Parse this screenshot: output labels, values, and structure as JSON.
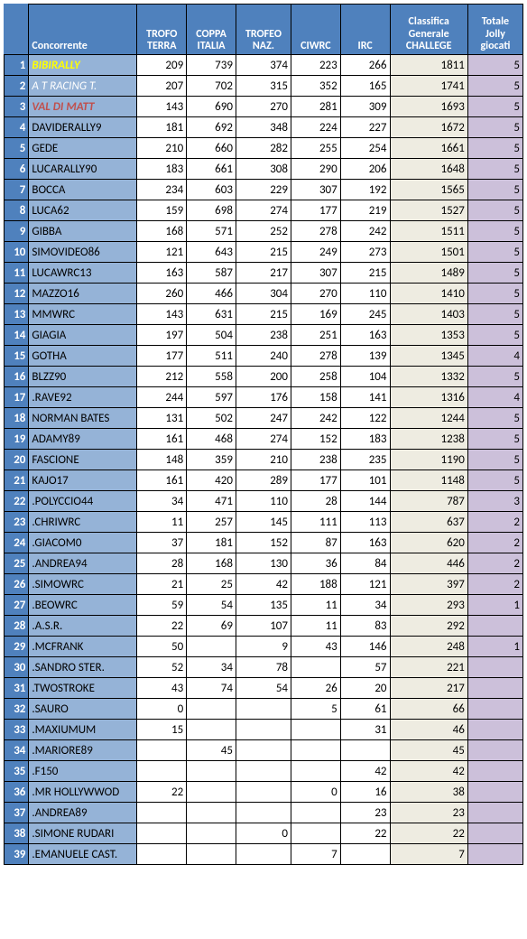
{
  "headers": {
    "rank": "",
    "name": "Concorrente",
    "terra": "TROFO TERRA",
    "coppa": "COPPA ITALIA",
    "naz": "TROFEO NAZ.",
    "ciwrc": "CIWRC",
    "irc": "IRC",
    "gen": "Classifica Generale CHALLEGE",
    "jolly": "Totale Jolly giocati"
  },
  "colors": {
    "header_bg": "#4f81bd",
    "header_fg": "#ffffff",
    "rank_bg": "#4f81bd",
    "rank_fg": "#ffffff",
    "name_bg": "#95b3d7",
    "num_bg": "#ffffff",
    "gen_bg": "#eeece1",
    "jolly_bg": "#ccc0da",
    "border": "#000000",
    "special1": "#ffff00",
    "special2": "#ffffff",
    "special3": "#c0504d"
  },
  "rows": [
    {
      "rank": 1,
      "name": "BIBIRALLY",
      "name_style": {
        "color": "#ffff00",
        "bold": true,
        "italic": true
      },
      "terra": 209,
      "coppa": 739,
      "naz": 374,
      "ciwrc": 223,
      "irc": 266,
      "gen": 1811,
      "jolly": 5
    },
    {
      "rank": 2,
      "name": "A T RACING T.",
      "name_style": {
        "color": "#ffffff",
        "bold": false,
        "italic": true
      },
      "terra": 207,
      "coppa": 702,
      "naz": 315,
      "ciwrc": 352,
      "irc": 165,
      "gen": 1741,
      "jolly": 5
    },
    {
      "rank": 3,
      "name": "VAL DI MATT",
      "name_style": {
        "color": "#c0504d",
        "bold": true,
        "italic": true
      },
      "terra": 143,
      "coppa": 690,
      "naz": 270,
      "ciwrc": 281,
      "irc": 309,
      "gen": 1693,
      "jolly": 5
    },
    {
      "rank": 4,
      "name": "DAVIDERALLY9",
      "terra": 181,
      "coppa": 692,
      "naz": 348,
      "ciwrc": 224,
      "irc": 227,
      "gen": 1672,
      "jolly": 5
    },
    {
      "rank": 5,
      "name": "GEDE",
      "terra": 210,
      "coppa": 660,
      "naz": 282,
      "ciwrc": 255,
      "irc": 254,
      "gen": 1661,
      "jolly": 5
    },
    {
      "rank": 6,
      "name": "LUCARALLY90",
      "terra": 183,
      "coppa": 661,
      "naz": 308,
      "ciwrc": 290,
      "irc": 206,
      "gen": 1648,
      "jolly": 5
    },
    {
      "rank": 7,
      "name": "BOCCA",
      "terra": 234,
      "coppa": 603,
      "naz": 229,
      "ciwrc": 307,
      "irc": 192,
      "gen": 1565,
      "jolly": 5
    },
    {
      "rank": 8,
      "name": "LUCA62",
      "terra": 159,
      "coppa": 698,
      "naz": 274,
      "ciwrc": 177,
      "irc": 219,
      "gen": 1527,
      "jolly": 5
    },
    {
      "rank": 9,
      "name": "GIBBA",
      "terra": 168,
      "coppa": 571,
      "naz": 252,
      "ciwrc": 278,
      "irc": 242,
      "gen": 1511,
      "jolly": 5
    },
    {
      "rank": 10,
      "name": "SIMOVIDEO86",
      "terra": 121,
      "coppa": 643,
      "naz": 215,
      "ciwrc": 249,
      "irc": 273,
      "gen": 1501,
      "jolly": 5
    },
    {
      "rank": 11,
      "name": "LUCAWRC13",
      "terra": 163,
      "coppa": 587,
      "naz": 217,
      "ciwrc": 307,
      "irc": 215,
      "gen": 1489,
      "jolly": 5
    },
    {
      "rank": 12,
      "name": "MAZZO16",
      "terra": 260,
      "coppa": 466,
      "naz": 304,
      "ciwrc": 270,
      "irc": 110,
      "gen": 1410,
      "jolly": 5
    },
    {
      "rank": 13,
      "name": "MMWRC",
      "terra": 143,
      "coppa": 631,
      "naz": 215,
      "ciwrc": 169,
      "irc": 245,
      "gen": 1403,
      "jolly": 5
    },
    {
      "rank": 14,
      "name": "GIAGIA",
      "terra": 197,
      "coppa": 504,
      "naz": 238,
      "ciwrc": 251,
      "irc": 163,
      "gen": 1353,
      "jolly": 5
    },
    {
      "rank": 15,
      "name": "GOTHA",
      "terra": 177,
      "coppa": 511,
      "naz": 240,
      "ciwrc": 278,
      "irc": 139,
      "gen": 1345,
      "jolly": 4
    },
    {
      "rank": 16,
      "name": "BLZZ90",
      "terra": 212,
      "coppa": 558,
      "naz": 200,
      "ciwrc": 258,
      "irc": 104,
      "gen": 1332,
      "jolly": 5
    },
    {
      "rank": 17,
      "name": ".RAVE92",
      "terra": 244,
      "coppa": 597,
      "naz": 176,
      "ciwrc": 158,
      "irc": 141,
      "gen": 1316,
      "jolly": 4
    },
    {
      "rank": 18,
      "name": "NORMAN BATES",
      "terra": 131,
      "coppa": 502,
      "naz": 247,
      "ciwrc": 242,
      "irc": 122,
      "gen": 1244,
      "jolly": 5
    },
    {
      "rank": 19,
      "name": "ADAMY89",
      "terra": 161,
      "coppa": 468,
      "naz": 274,
      "ciwrc": 152,
      "irc": 183,
      "gen": 1238,
      "jolly": 5
    },
    {
      "rank": 20,
      "name": "FASCIONE",
      "terra": 148,
      "coppa": 359,
      "naz": 210,
      "ciwrc": 238,
      "irc": 235,
      "gen": 1190,
      "jolly": 5
    },
    {
      "rank": 21,
      "name": "KAJO17",
      "terra": 161,
      "coppa": 420,
      "naz": 289,
      "ciwrc": 177,
      "irc": 101,
      "gen": 1148,
      "jolly": 5
    },
    {
      "rank": 22,
      "name": ".POLYCCIO44",
      "terra": 34,
      "coppa": 471,
      "naz": 110,
      "ciwrc": 28,
      "irc": 144,
      "gen": 787,
      "jolly": 3
    },
    {
      "rank": 23,
      "name": ".CHRIWRC",
      "terra": 11,
      "coppa": 257,
      "naz": 145,
      "ciwrc": 111,
      "irc": 113,
      "gen": 637,
      "jolly": 2
    },
    {
      "rank": 24,
      "name": ".GIACOM0",
      "terra": 37,
      "coppa": 181,
      "naz": 152,
      "ciwrc": 87,
      "irc": 163,
      "gen": 620,
      "jolly": 2
    },
    {
      "rank": 25,
      "name": ".ANDREA94",
      "terra": 28,
      "coppa": 168,
      "naz": 130,
      "ciwrc": 36,
      "irc": 84,
      "gen": 446,
      "jolly": 2
    },
    {
      "rank": 26,
      "name": ".SIMOWRC",
      "terra": 21,
      "coppa": 25,
      "naz": 42,
      "ciwrc": 188,
      "irc": 121,
      "gen": 397,
      "jolly": 2
    },
    {
      "rank": 27,
      "name": ".BEOWRC",
      "terra": 59,
      "coppa": 54,
      "naz": 135,
      "ciwrc": 11,
      "irc": 34,
      "gen": 293,
      "jolly": 1
    },
    {
      "rank": 28,
      "name": ".A.S.R.",
      "terra": 22,
      "coppa": 69,
      "naz": 107,
      "ciwrc": 11,
      "irc": 83,
      "gen": 292,
      "jolly": ""
    },
    {
      "rank": 29,
      "name": ".MCFRANK",
      "terra": 50,
      "coppa": "",
      "naz": 9,
      "ciwrc": 43,
      "irc": 146,
      "gen": 248,
      "jolly": 1
    },
    {
      "rank": 30,
      "name": ".SANDRO STER.",
      "terra": 52,
      "coppa": 34,
      "naz": 78,
      "ciwrc": "",
      "irc": 57,
      "gen": 221,
      "jolly": ""
    },
    {
      "rank": 31,
      "name": ".TWOSTROKE",
      "terra": 43,
      "coppa": 74,
      "naz": 54,
      "ciwrc": 26,
      "irc": 20,
      "gen": 217,
      "jolly": ""
    },
    {
      "rank": 32,
      "name": ".SAURO",
      "terra": 0,
      "coppa": "",
      "naz": "",
      "ciwrc": 5,
      "irc": 61,
      "gen": 66,
      "jolly": ""
    },
    {
      "rank": 33,
      "name": ".MAXIUMUM",
      "terra": 15,
      "coppa": "",
      "naz": "",
      "ciwrc": "",
      "irc": 31,
      "gen": 46,
      "jolly": ""
    },
    {
      "rank": 34,
      "name": ".MARIORE89",
      "terra": "",
      "coppa": 45,
      "naz": "",
      "ciwrc": "",
      "irc": "",
      "gen": 45,
      "jolly": ""
    },
    {
      "rank": 35,
      "name": ".F150",
      "terra": "",
      "coppa": "",
      "naz": "",
      "ciwrc": "",
      "irc": 42,
      "gen": 42,
      "jolly": ""
    },
    {
      "rank": 36,
      "name": ".MR HOLLYWWOD",
      "terra": 22,
      "coppa": "",
      "naz": "",
      "ciwrc": 0,
      "irc": 16,
      "gen": 38,
      "jolly": ""
    },
    {
      "rank": 37,
      "name": ".ANDREA89",
      "terra": "",
      "coppa": "",
      "naz": "",
      "ciwrc": "",
      "irc": 23,
      "gen": 23,
      "jolly": ""
    },
    {
      "rank": 38,
      "name": ".SIMONE RUDARI",
      "terra": "",
      "coppa": "",
      "naz": 0,
      "ciwrc": "",
      "irc": 22,
      "gen": 22,
      "jolly": ""
    },
    {
      "rank": 39,
      "name": ".EMANUELE CAST.",
      "terra": "",
      "coppa": "",
      "naz": "",
      "ciwrc": 7,
      "irc": "",
      "gen": 7,
      "jolly": ""
    }
  ]
}
